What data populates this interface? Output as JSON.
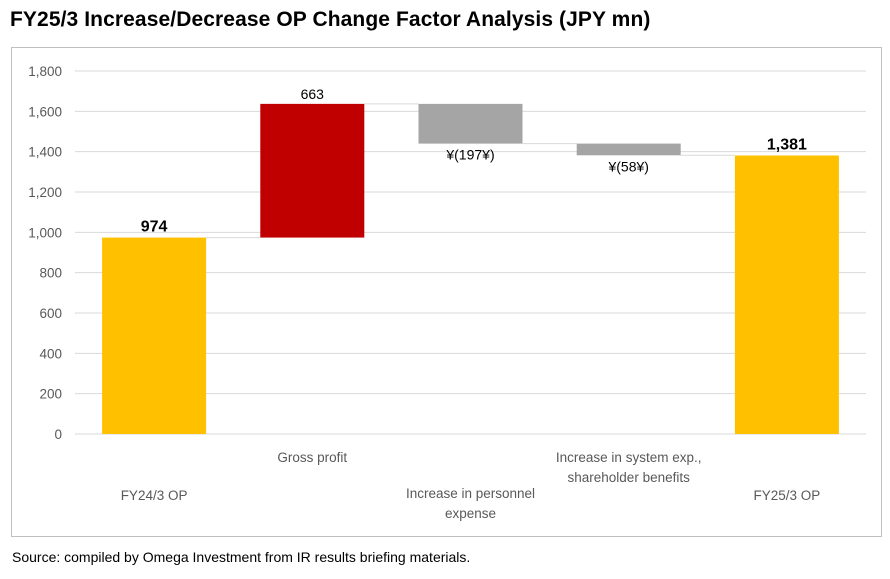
{
  "title": "FY25/3 Increase/Decrease OP Change Factor Analysis (JPY mn)",
  "source": "Source: compiled by Omega Investment from IR results briefing materials.",
  "colors": {
    "total": "#ffc000",
    "increase": "#c00000",
    "decrease": "#a5a5a5",
    "grid": "#d9d9d9",
    "axis_text": "#595959"
  },
  "chart_data": {
    "type": "waterfall",
    "ylim": [
      0,
      1800
    ],
    "yticks": [
      "0",
      "200",
      "400",
      "600",
      "800",
      "1,000",
      "1,200",
      "1,400",
      "1,600",
      "1,800"
    ],
    "grid": true,
    "items": [
      {
        "label_lines": [
          "FY24/3 OP"
        ],
        "kind": "total",
        "value": 974,
        "label": "974"
      },
      {
        "label_lines": [
          "Gross profit"
        ],
        "kind": "increase",
        "value": 663,
        "label": "663"
      },
      {
        "label_lines": [
          "Increase in personnel",
          "expense"
        ],
        "kind": "decrease",
        "value": -197,
        "label": "¥(197¥)"
      },
      {
        "label_lines": [
          "Increase in system exp.,",
          "shareholder benefits"
        ],
        "kind": "decrease",
        "value": -58,
        "label": "¥(58¥)"
      },
      {
        "label_lines": [
          "FY25/3 OP"
        ],
        "kind": "total",
        "value": 1381,
        "label": "1,381"
      }
    ]
  }
}
